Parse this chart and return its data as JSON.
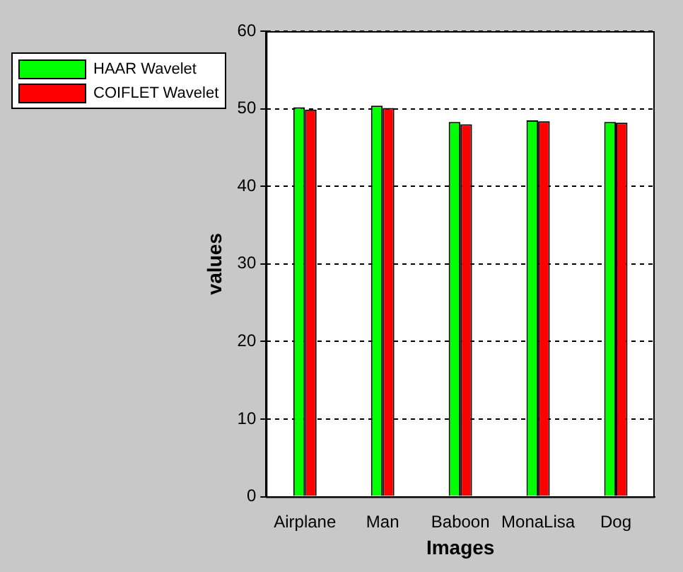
{
  "chart_data": {
    "type": "bar",
    "xlabel": "Images",
    "ylabel": "values",
    "categories": [
      "Airplane",
      "Man",
      "Baboon",
      "MonaLisa",
      "Dog"
    ],
    "series": [
      {
        "name": "HAAR Wavelet",
        "color": "#00ff00",
        "values": [
          50.2,
          50.4,
          48.3,
          48.5,
          48.3
        ]
      },
      {
        "name": "COIFLET Wavelet",
        "color": "#ff0000",
        "values": [
          49.9,
          50.1,
          48.0,
          48.4,
          48.2
        ]
      }
    ],
    "ylim": [
      0,
      60
    ],
    "yticks": [
      0,
      10,
      20,
      30,
      40,
      50,
      60
    ],
    "grid": "y",
    "legend": "top left"
  }
}
